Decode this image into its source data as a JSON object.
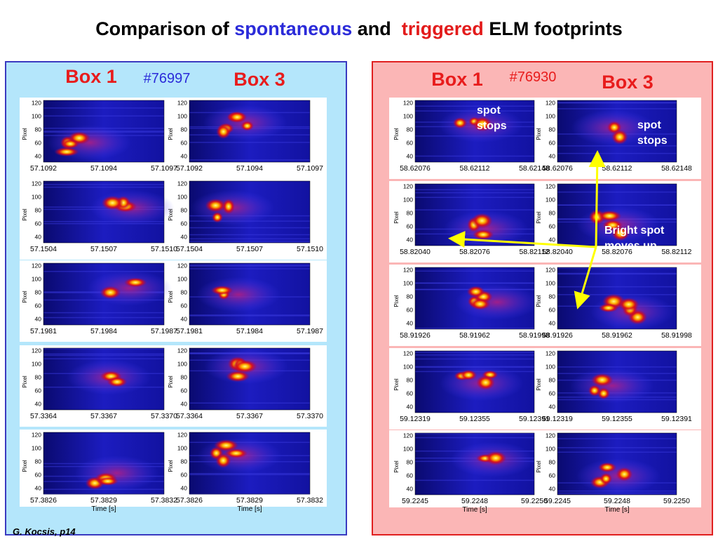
{
  "title": {
    "prefix": "Comparison of",
    "spontaneous": "spontaneous",
    "and": "and",
    "triggered": "triggered",
    "suffix": "ELM footprints"
  },
  "axis": {
    "yticks": [
      "120",
      "100",
      "80",
      "60",
      "40"
    ],
    "ylabel": "Pixel",
    "xlabel": "Time [s]"
  },
  "left_panel": {
    "box1": "Box 1",
    "shot": "#76997",
    "box3": "Box 3",
    "rows": [
      {
        "xticks": [
          "57.1092",
          "57.1094",
          "57.1097"
        ]
      },
      {
        "xticks": [
          "57.1504",
          "57.1507",
          "57.1510"
        ]
      },
      {
        "xticks": [
          "57.1981",
          "57.1984",
          "57.1987"
        ]
      },
      {
        "xticks": [
          "57.3364",
          "57.3367",
          "57.3370"
        ]
      },
      {
        "xticks": [
          "57.3826",
          "57.3829",
          "57.3832"
        ]
      }
    ]
  },
  "right_panel": {
    "box1": "Box 1",
    "shot": "#76930",
    "box3": "Box 3",
    "rows": [
      {
        "xticks": [
          "58.62076",
          "58.62112",
          "58.62148"
        ]
      },
      {
        "xticks": [
          "58.82040",
          "58.82076",
          "58.82112"
        ]
      },
      {
        "xticks": [
          "58.91926",
          "58.91962",
          "58.91998"
        ]
      },
      {
        "xticks": [
          "59.12319",
          "59.12355",
          "59.12391"
        ]
      },
      {
        "xticks": [
          "59.2245",
          "59.2248",
          "59.2250"
        ]
      }
    ],
    "annotations": {
      "spot_stops_left": [
        "spot",
        "stops"
      ],
      "spot_stops_right": [
        "spot",
        "stops"
      ],
      "bright_spot": [
        "Bright spot",
        "moves up"
      ]
    }
  },
  "footer": "G. Kocsis,  p14"
}
